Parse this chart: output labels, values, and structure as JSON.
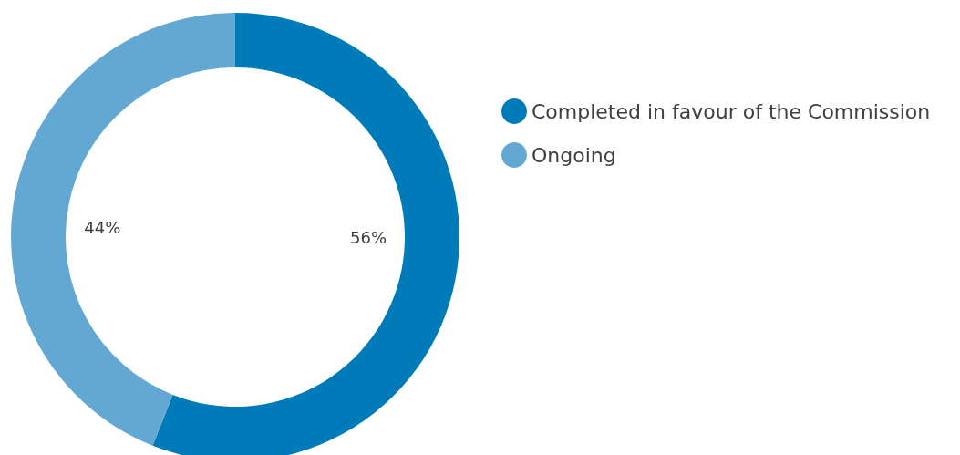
{
  "chart_data": {
    "type": "donut",
    "categories": [
      "Completed in favour of the Commission",
      "Ongoing"
    ],
    "values": [
      56,
      44
    ],
    "colors": [
      "#007bba",
      "#63a8d3"
    ],
    "value_labels": [
      "56%",
      "44%"
    ],
    "legend": "right"
  }
}
